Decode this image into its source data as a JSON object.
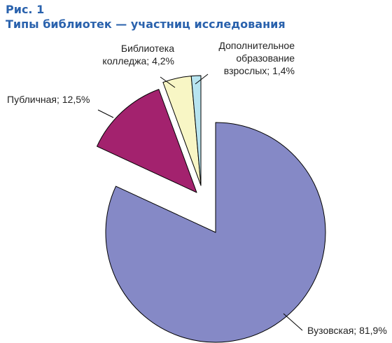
{
  "figure_label": "Рис. 1",
  "title": "Типы библиотек — участниц исследования",
  "chart_data": {
    "type": "pie",
    "title": "Типы библиотек — участниц исследования",
    "slices": [
      {
        "name": "Вузовская",
        "value": 81.9,
        "label": "Вузовская; 81,9%",
        "color": "#8589c6"
      },
      {
        "name": "Публичная",
        "value": 12.5,
        "label": "Публичная; 12,5%",
        "color": "#a3226e"
      },
      {
        "name": "Библиотека колледжа",
        "value": 4.2,
        "label_lines": [
          "Библиотека",
          "колледжа; 4,2%"
        ],
        "color": "#f8f6c5"
      },
      {
        "name": "Дополнительное образование взрослых",
        "value": 1.4,
        "label_lines": [
          "Дополнительное",
          "образование",
          "взрослых; 1,4%"
        ],
        "color": "#b7e4ef"
      }
    ],
    "legend": "none",
    "start_angle_deg": 0,
    "exploded": true
  }
}
